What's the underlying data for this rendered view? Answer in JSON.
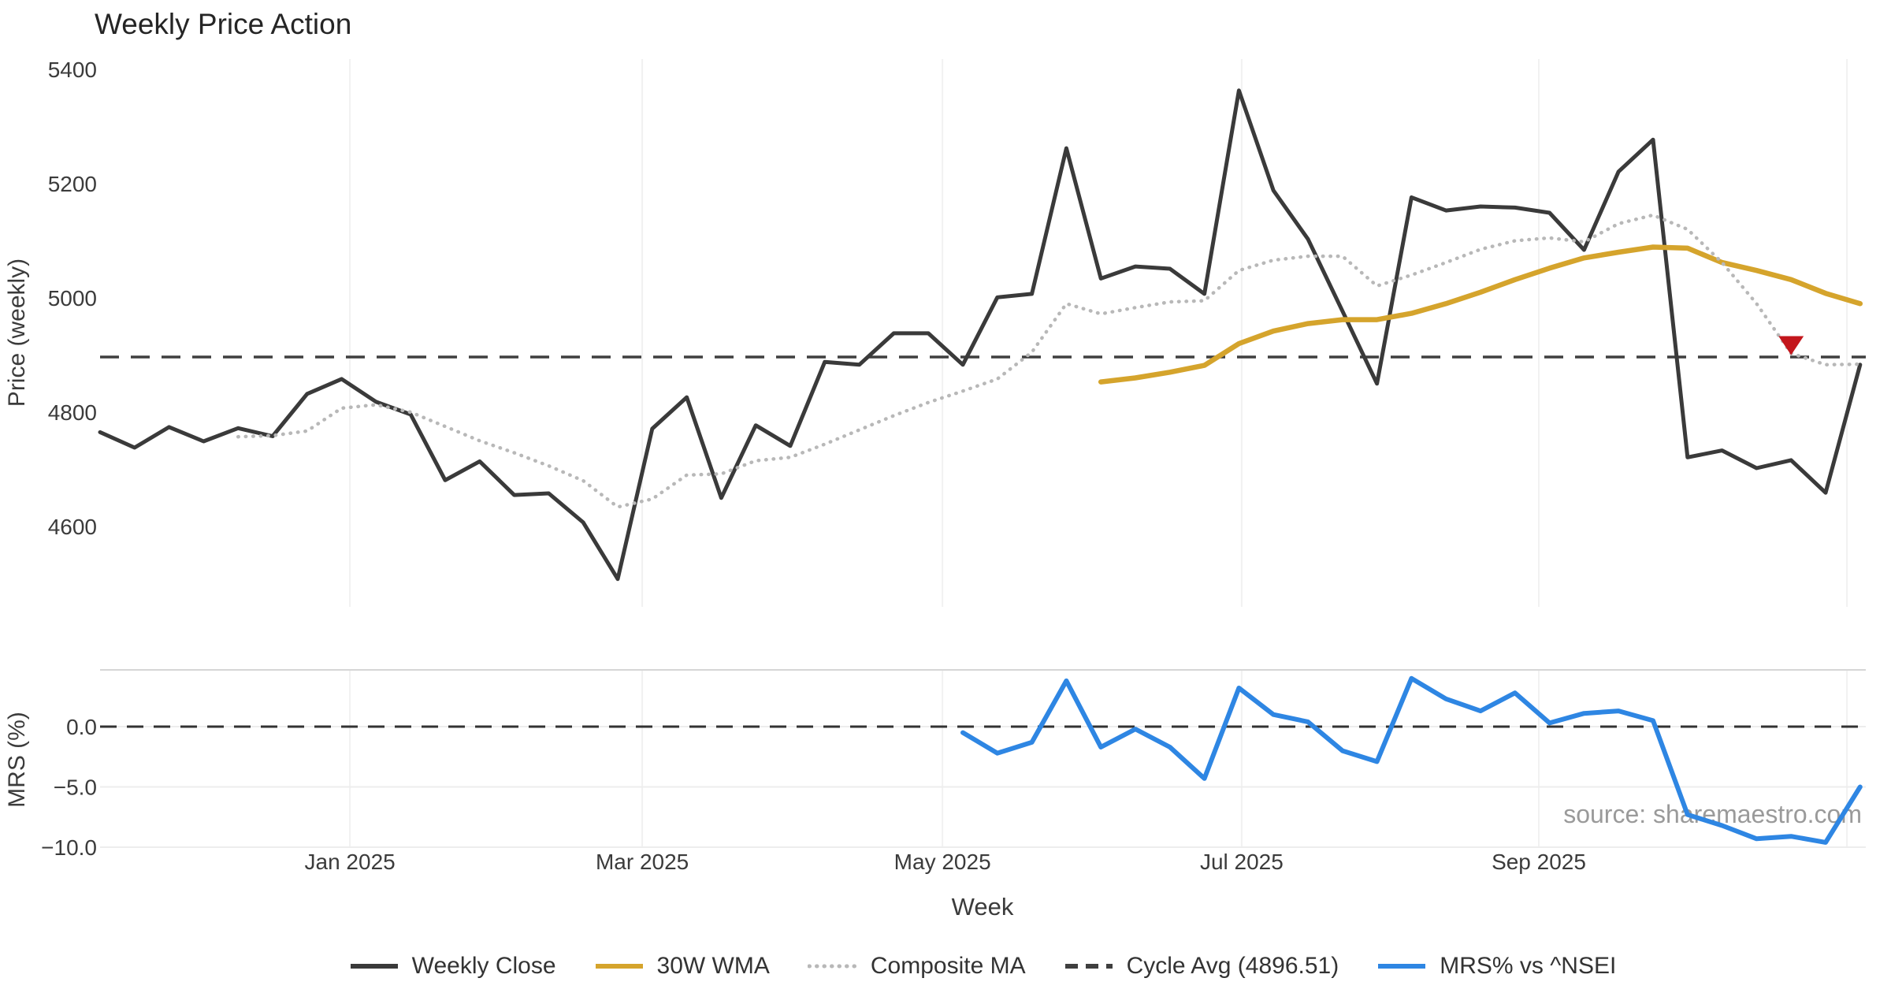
{
  "title": "Weekly Price Action",
  "watermark": "source: sharemaestro.com",
  "axes": {
    "price_label": "Price (weekly)",
    "mrs_label": "MRS (%)",
    "x_label": "Week",
    "price_ticks": [
      5400,
      5200,
      5000,
      4800,
      4600
    ],
    "mrs_ticks": [
      0.0,
      -5.0,
      -10.0
    ],
    "mrs_tick_labels": [
      "0.0",
      "−5.0",
      "−10.0"
    ]
  },
  "legend": [
    {
      "label": "Weekly Close",
      "color": "#3a3a3a",
      "style": "solid"
    },
    {
      "label": "30W WMA",
      "color": "#D5A42C",
      "style": "solid"
    },
    {
      "label": "Composite MA",
      "color": "#b8b8b8",
      "style": "dotted"
    },
    {
      "label": "Cycle Avg (4896.51)",
      "color": "#3f3f3f",
      "style": "dashed"
    },
    {
      "label": "MRS% vs ^NSEI",
      "color": "#2E86E3",
      "style": "solid"
    }
  ],
  "chart_data": {
    "type": "line",
    "x_unit": "week",
    "weeks_start": "Nov 2024",
    "weeks_count": 52,
    "x_ticks": [
      {
        "label": "Jan 2025",
        "index": 7.24
      },
      {
        "label": "Mar 2025",
        "index": 15.71
      },
      {
        "label": "May 2025",
        "index": 24.41
      },
      {
        "label": "Jul 2025",
        "index": 33.08
      },
      {
        "label": "Sep 2025",
        "index": 41.69
      },
      {
        "label": "",
        "index": 50.62
      }
    ],
    "ylim_price": [
      4460,
      5420
    ],
    "ylim_mrs": [
      -10.0,
      4.7
    ],
    "grid": "vertical-months, mrs-horizontal",
    "legend_position": "bottom-center",
    "cycle_avg": 4896.51,
    "series": [
      {
        "name": "Weekly Close",
        "panel": "price",
        "color": "#3a3a3a",
        "style": "solid",
        "width": 5,
        "start_index": 0,
        "values": [
          4765,
          4738,
          4774,
          4749,
          4772,
          4758,
          4832,
          4858,
          4818,
          4796,
          4681,
          4714,
          4655,
          4658,
          4607,
          4508,
          4771,
          4826,
          4650,
          4777,
          4741,
          4888,
          4883,
          4938,
          4938,
          4883,
          5001,
          5007,
          5262,
          5034,
          5055,
          5051,
          5007,
          5363,
          5188,
          5103,
          4977,
          4850,
          5176,
          5153,
          5160,
          5158,
          5149,
          5084,
          5221,
          5277,
          4721,
          4733,
          4702,
          4716,
          4659,
          4883
        ]
      },
      {
        "name": "30W WMA",
        "panel": "price",
        "color": "#D5A42C",
        "style": "solid",
        "width": 6.5,
        "start_index": 29,
        "values": [
          4853,
          4860,
          4870,
          4882,
          4920,
          4942,
          4955,
          4962,
          4962,
          4973,
          4990,
          5010,
          5032,
          5052,
          5070,
          5080,
          5089,
          5087,
          5062,
          5048,
          5032,
          5008,
          4990
        ]
      },
      {
        "name": "Composite MA",
        "panel": "price",
        "color": "#b8b8b8",
        "style": "dotted",
        "width": 4.5,
        "start_index": 4,
        "values": [
          4757,
          4759,
          4767,
          4807,
          4813,
          4800,
          4775,
          4750,
          4729,
          4706,
          4680,
          4634,
          4648,
          4690,
          4692,
          4715,
          4721,
          4744,
          4769,
          4794,
          4817,
          4837,
          4858,
          4905,
          4990,
          4972,
          4983,
          4993,
          4995,
          5048,
          5066,
          5073,
          5073,
          5021,
          5040,
          5062,
          5085,
          5100,
          5105,
          5098,
          5130,
          5145,
          5120,
          5062,
          4990,
          4903,
          4883,
          4884
        ]
      },
      {
        "name": "MRS% vs ^NSEI",
        "panel": "mrs",
        "color": "#2E86E3",
        "style": "solid",
        "width": 6,
        "start_index": 25,
        "values": [
          -0.5,
          -2.2,
          -1.3,
          3.8,
          -1.7,
          -0.2,
          -1.7,
          -4.3,
          3.2,
          1.0,
          0.4,
          -2.0,
          -2.9,
          4.0,
          2.3,
          1.3,
          2.8,
          0.3,
          1.1,
          1.3,
          0.5,
          -7.3,
          -8.2,
          -9.3,
          -9.1,
          -9.6,
          -5.0
        ]
      }
    ],
    "markers": [
      {
        "name": "sell-signal",
        "shape": "triangle-down",
        "color": "#C3161C",
        "index": 49,
        "price": 4918
      }
    ]
  }
}
